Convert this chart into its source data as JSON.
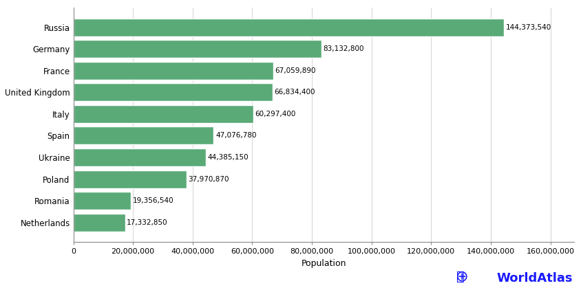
{
  "countries": [
    "Netherlands",
    "Romania",
    "Poland",
    "Ukraine",
    "Spain",
    "Italy",
    "United Kingdom",
    "France",
    "Germany",
    "Russia"
  ],
  "populations": [
    17332850,
    19356540,
    37970870,
    44385150,
    47076780,
    60297400,
    66834400,
    67059890,
    83132800,
    144373540
  ],
  "labels": [
    "17,332,850",
    "19,356,540",
    "37,970,870",
    "44,385,150",
    "47,076,780",
    "60,297,400",
    "66,834,400",
    "67,059,890",
    "83,132,800",
    "144,373,540"
  ],
  "bar_color": "#5aaa78",
  "background_color": "#ffffff",
  "xlabel": "Population",
  "xlim": [
    0,
    168000000
  ],
  "xticks": [
    0,
    20000000,
    40000000,
    60000000,
    80000000,
    100000000,
    120000000,
    140000000,
    160000000
  ],
  "xtick_labels": [
    "0",
    "20,000,000",
    "40,000,000",
    "60,000,000",
    "80,000,000",
    "100,000,000",
    "120,000,000",
    "140,000,000",
    "160,000,000"
  ],
  "worldatlas_text": "WorldAtlas",
  "worldatlas_color": "#1a1aff",
  "label_fontsize": 7.5,
  "axis_label_fontsize": 9,
  "ytick_fontsize": 8.5,
  "xtick_fontsize": 8
}
